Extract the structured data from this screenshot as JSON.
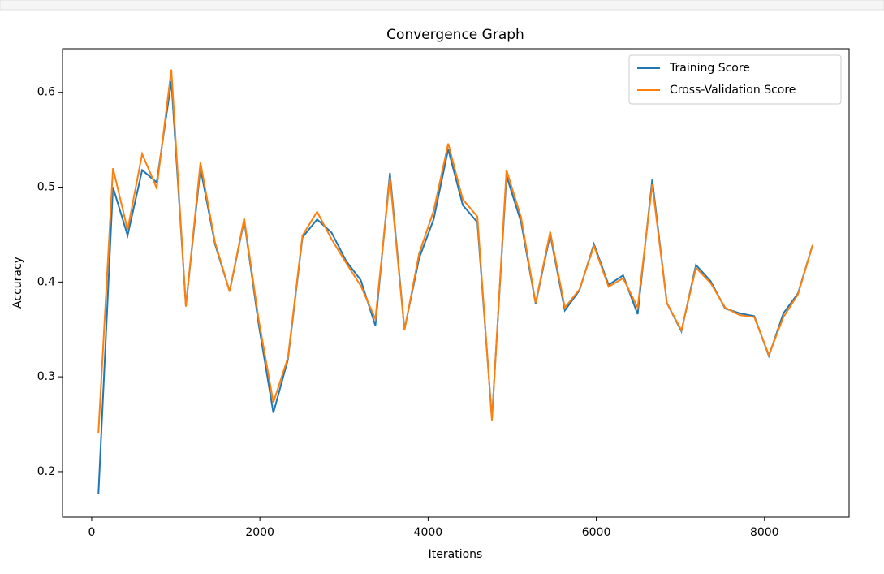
{
  "chart_data": {
    "type": "line",
    "title": "Convergence Graph",
    "xlabel": "Iterations",
    "ylabel": "Accuracy",
    "x": [
      80,
      253,
      427,
      600,
      773,
      947,
      1120,
      1293,
      1466,
      1640,
      1813,
      1986,
      2160,
      2333,
      2506,
      2680,
      2853,
      3026,
      3199,
      3373,
      3546,
      3719,
      3893,
      4066,
      4239,
      4413,
      4586,
      4759,
      4932,
      5106,
      5279,
      5452,
      5626,
      5799,
      5972,
      6146,
      6319,
      6492,
      6665,
      6839,
      7012,
      7185,
      7359,
      7532,
      7705,
      7879,
      8052,
      8225,
      8398,
      8572
    ],
    "series": [
      {
        "name": "Training Score",
        "color": "#1f77b4",
        "values": [
          0.176,
          0.5,
          0.449,
          0.518,
          0.505,
          0.612,
          0.375,
          0.52,
          0.44,
          0.39,
          0.465,
          0.355,
          0.262,
          0.318,
          0.447,
          0.466,
          0.452,
          0.422,
          0.402,
          0.354,
          0.515,
          0.35,
          0.425,
          0.466,
          0.54,
          0.481,
          0.463,
          0.256,
          0.512,
          0.463,
          0.377,
          0.45,
          0.37,
          0.391,
          0.44,
          0.397,
          0.407,
          0.366,
          0.508,
          0.378,
          0.348,
          0.418,
          0.401,
          0.372,
          0.367,
          0.364,
          0.322,
          0.367,
          0.388,
          0.439
        ]
      },
      {
        "name": "Cross-Validation Score",
        "color": "#ff7f0e",
        "values": [
          0.241,
          0.52,
          0.455,
          0.535,
          0.499,
          0.624,
          0.374,
          0.526,
          0.442,
          0.39,
          0.467,
          0.36,
          0.273,
          0.32,
          0.449,
          0.474,
          0.445,
          0.42,
          0.396,
          0.361,
          0.51,
          0.349,
          0.43,
          0.475,
          0.546,
          0.487,
          0.469,
          0.254,
          0.518,
          0.468,
          0.378,
          0.453,
          0.373,
          0.392,
          0.438,
          0.395,
          0.404,
          0.373,
          0.503,
          0.378,
          0.349,
          0.415,
          0.399,
          0.373,
          0.365,
          0.363,
          0.323,
          0.363,
          0.387,
          0.439
        ]
      }
    ],
    "xlim": [
      -347,
      9006
    ],
    "xticks": [
      0,
      2000,
      4000,
      6000,
      8000
    ],
    "ylim": [
      0.152,
      0.646
    ],
    "yticks": [
      0.2,
      0.3,
      0.4,
      0.5,
      0.6
    ],
    "legend": "upper right",
    "grid": false
  }
}
